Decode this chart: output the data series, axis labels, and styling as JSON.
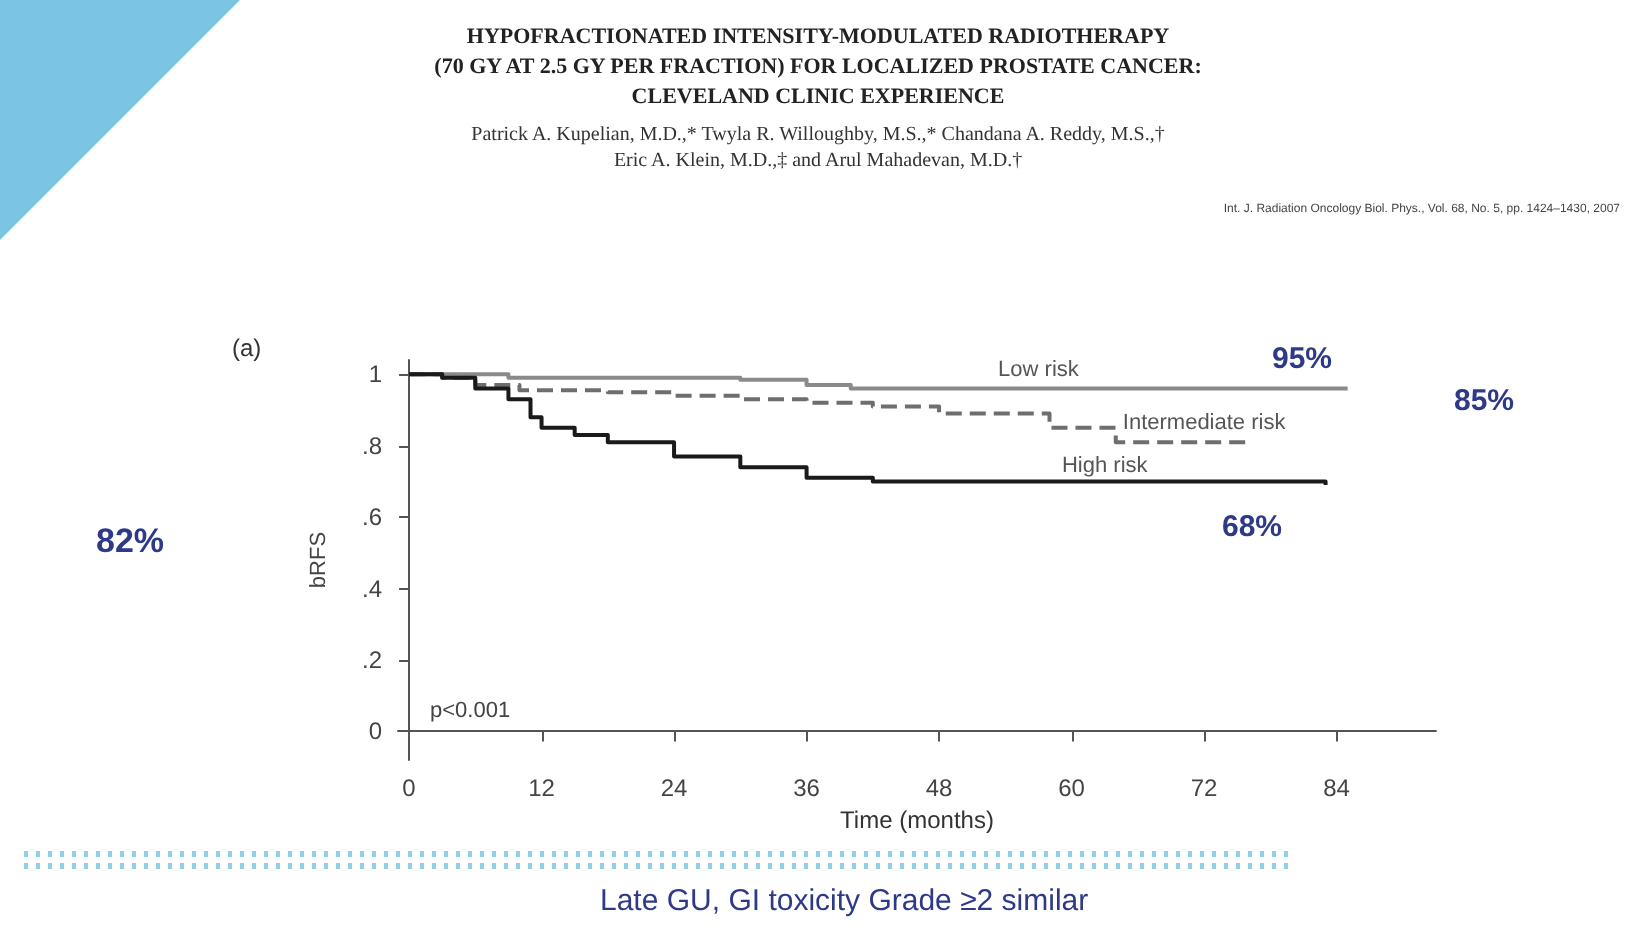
{
  "chart_data": {
    "type": "step",
    "title": "HYPOFRACTIONATED INTENSITY-MODULATED RADIOTHERAPY\n(70 GY AT 2.5 GY PER FRACTION) FOR LOCALIZED PROSTATE CANCER:\nCLEVELAND CLINIC EXPERIENCE",
    "subtitle": "Patrick A. Kupelian, M.D.,* Twyla R. Willoughby, M.S.,* Chandana A. Reddy, M.S.,†\nEric A. Klein, M.D.,‡ and Arul Mahadevan, M.D.†",
    "xlabel": "Time (months)",
    "ylabel": "bRFS",
    "annotations": [
      "(a)",
      "p<0.001",
      "82%",
      "Int. J. Radiation Oncology Biol. Phys., Vol. 68, No. 5, pp. 1424–1430, 2007",
      "Late GU, GI toxicity Grade ≥2 similar",
      "95%",
      "85%",
      "68%",
      {
        "text": "Low risk",
        "x": 57,
        "y": 0.96
      },
      {
        "text": "Intermediate risk",
        "x": 72,
        "y": 0.81
      },
      {
        "text": "High risk",
        "x": 63,
        "y": 0.69
      }
    ],
    "series": [
      {
        "color": "#8a8a8a",
        "x": [
          0,
          9,
          18,
          30,
          36,
          40,
          85
        ],
        "values": [
          1,
          0.99,
          0.99,
          0.985,
          0.97,
          0.96,
          0.96
        ]
      },
      {
        "color": "#6e6e6e",
        "line_style": "dashed",
        "x": [
          0,
          3,
          6,
          10,
          18,
          24,
          30,
          36,
          42,
          48,
          58,
          64,
          76
        ],
        "values": [
          1,
          0.99,
          0.97,
          0.955,
          0.95,
          0.94,
          0.93,
          0.92,
          0.91,
          0.89,
          0.85,
          0.81,
          0.81
        ]
      },
      {
        "color": "#1a1a1a",
        "x": [
          0,
          3,
          6,
          9,
          11,
          12,
          15,
          18,
          24,
          30,
          36,
          42,
          60,
          83
        ],
        "values": [
          1,
          0.99,
          0.96,
          0.93,
          0.88,
          0.85,
          0.83,
          0.81,
          0.77,
          0.74,
          0.71,
          0.7,
          0.7,
          0.69
        ]
      }
    ],
    "xlim": [
      -1,
      93
    ],
    "xticks": [
      0,
      12,
      24,
      36,
      48,
      60,
      72,
      84
    ],
    "ylim": [
      -0.08,
      1.04
    ],
    "yticks": [
      {
        "value": 0,
        "label": "0"
      },
      {
        "value": 0.2,
        "label": ".2"
      },
      {
        "value": 0.4,
        "label": ".4"
      },
      {
        "value": 0.6,
        "label": ".6"
      },
      {
        "value": 0.8,
        "label": ".8"
      },
      {
        "value": 1,
        "label": "1"
      }
    ],
    "grid": false,
    "marker": "none"
  }
}
